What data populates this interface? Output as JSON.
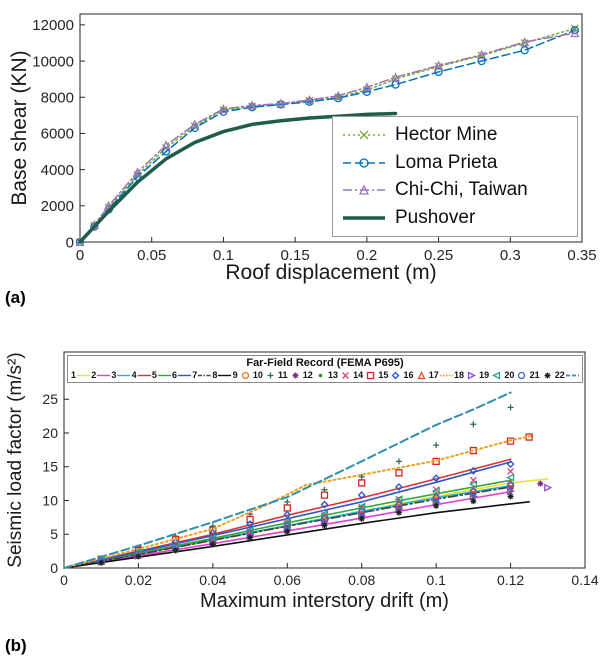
{
  "figure": {
    "panel_a_label": "(a)",
    "panel_b_label": "(b)"
  },
  "chart_data": [
    {
      "id": "a",
      "type": "line",
      "xlabel": "Roof displacement (m)",
      "ylabel": "Base shear (KN)",
      "xlim": [
        0,
        0.35
      ],
      "ylim": [
        0,
        12600
      ],
      "xticks": [
        0,
        0.05,
        0.1,
        0.15,
        0.2,
        0.25,
        0.3,
        0.35
      ],
      "xtick_labels": [
        "0",
        "0.05",
        "0.1",
        "0.15",
        "0.2",
        "0.25",
        "0.3",
        "0.35"
      ],
      "yticks": [
        0,
        2000,
        4000,
        6000,
        8000,
        10000,
        12000
      ],
      "ytick_labels": [
        "0",
        "2000",
        "4000",
        "6000",
        "8000",
        "10000",
        "12000"
      ],
      "grid": false,
      "legend_position": "right-middle",
      "series": [
        {
          "name": "Hector Mine",
          "color": "#77ac30",
          "line": "dot",
          "marker": "x",
          "width": 1.5,
          "x": [
            0,
            0.01,
            0.02,
            0.04,
            0.06,
            0.08,
            0.1,
            0.12,
            0.14,
            0.16,
            0.18,
            0.2,
            0.22,
            0.25,
            0.28,
            0.31,
            0.345
          ],
          "y": [
            0,
            900,
            1900,
            3700,
            5200,
            6400,
            7300,
            7500,
            7600,
            7800,
            8000,
            8400,
            9000,
            9700,
            10300,
            11000,
            11800
          ]
        },
        {
          "name": "Loma Prieta",
          "color": "#0072bd",
          "line": "dash",
          "marker": "o",
          "width": 1.5,
          "x": [
            0,
            0.01,
            0.02,
            0.04,
            0.06,
            0.08,
            0.1,
            0.12,
            0.14,
            0.16,
            0.18,
            0.2,
            0.22,
            0.25,
            0.28,
            0.31,
            0.345
          ],
          "y": [
            0,
            850,
            1800,
            3600,
            5000,
            6300,
            7200,
            7450,
            7600,
            7750,
            7950,
            8300,
            8700,
            9400,
            10000,
            10600,
            11700
          ]
        },
        {
          "name": "Chi-Chi, Taiwan",
          "color": "#9c73b8",
          "line": "dashdot",
          "marker": "^",
          "width": 1.5,
          "x": [
            0,
            0.01,
            0.02,
            0.04,
            0.06,
            0.08,
            0.1,
            0.12,
            0.14,
            0.16,
            0.18,
            0.2,
            0.22,
            0.25,
            0.28,
            0.31,
            0.345
          ],
          "y": [
            0,
            950,
            2000,
            3850,
            5350,
            6500,
            7350,
            7550,
            7650,
            7850,
            8080,
            8550,
            9100,
            9750,
            10350,
            11050,
            11550
          ]
        },
        {
          "name": "Pushover",
          "color": "#1f5c4a",
          "line": "solid",
          "marker": "none",
          "width": 3.5,
          "x": [
            0,
            0.02,
            0.04,
            0.06,
            0.08,
            0.1,
            0.12,
            0.14,
            0.16,
            0.18,
            0.2,
            0.22
          ],
          "y": [
            0,
            1700,
            3300,
            4600,
            5500,
            6100,
            6500,
            6700,
            6850,
            6950,
            7050,
            7100
          ]
        }
      ]
    },
    {
      "id": "b",
      "type": "line",
      "legend_title": "Far-Field Record (FEMA P695)",
      "xlabel": "Maximum interstory drift (m)",
      "ylabel": "Seismic load factor (m/s²)",
      "xlim": [
        0,
        0.14
      ],
      "ylim": [
        0,
        32
      ],
      "xticks": [
        0,
        0.02,
        0.04,
        0.06,
        0.08,
        0.1,
        0.12,
        0.14
      ],
      "xtick_labels": [
        "0",
        "0.02",
        "0.04",
        "0.06",
        "0.08",
        "0.1",
        "0.12",
        "0.14"
      ],
      "yticks": [
        0,
        5,
        10,
        15,
        20,
        25
      ],
      "ytick_labels": [
        "0",
        "5",
        "10",
        "15",
        "20",
        "25"
      ],
      "grid": false,
      "legend_position": "top-inside",
      "series": [
        {
          "name": "1",
          "color": "#f0e030",
          "line": "solid",
          "marker": "none",
          "x": [
            0,
            0.02,
            0.04,
            0.06,
            0.08,
            0.1,
            0.12,
            0.13
          ],
          "y": [
            0,
            2.0,
            4.1,
            6.2,
            8.4,
            10.6,
            12.6,
            13.2
          ]
        },
        {
          "name": "2",
          "color": "#e040d0",
          "line": "solid",
          "marker": "none",
          "x": [
            0,
            0.02,
            0.04,
            0.06,
            0.08,
            0.1,
            0.12
          ],
          "y": [
            0,
            1.8,
            3.6,
            5.5,
            7.4,
            9.4,
            11.3
          ]
        },
        {
          "name": "3",
          "color": "#20b8c8",
          "line": "solid",
          "marker": "none",
          "x": [
            0,
            0.02,
            0.04,
            0.06,
            0.08,
            0.1,
            0.12
          ],
          "y": [
            0,
            2.1,
            4.2,
            6.3,
            8.4,
            10.4,
            12.2
          ]
        },
        {
          "name": "4",
          "color": "#e03333",
          "line": "solid",
          "marker": "none",
          "x": [
            0,
            0.02,
            0.04,
            0.06,
            0.08,
            0.1,
            0.12
          ],
          "y": [
            0,
            2.5,
            5.0,
            7.8,
            10.4,
            13.2,
            16.1
          ]
        },
        {
          "name": "5",
          "color": "#37a837",
          "line": "solid",
          "marker": "none",
          "x": [
            0,
            0.02,
            0.04,
            0.06,
            0.08,
            0.1,
            0.12
          ],
          "y": [
            0,
            2.2,
            4.4,
            6.7,
            8.9,
            11.0,
            13.0
          ]
        },
        {
          "name": "6",
          "color": "#3355cc",
          "line": "solid",
          "marker": "none",
          "x": [
            0,
            0.02,
            0.04,
            0.06,
            0.08,
            0.1,
            0.12
          ],
          "y": [
            0,
            2.4,
            4.8,
            7.3,
            9.8,
            12.7,
            15.7
          ]
        },
        {
          "name": "7",
          "color": "#444444",
          "line": "dashdot",
          "marker": "none",
          "x": [
            0,
            0.02,
            0.04,
            0.06,
            0.08,
            0.1,
            0.12
          ],
          "y": [
            0,
            2.0,
            4.1,
            6.2,
            8.2,
            10.2,
            12.0
          ]
        },
        {
          "name": "8",
          "color": "#111111",
          "line": "solid",
          "marker": "none",
          "x": [
            0,
            0.02,
            0.04,
            0.06,
            0.08,
            0.1,
            0.12,
            0.125
          ],
          "y": [
            0,
            1.6,
            3.2,
            4.9,
            6.6,
            8.2,
            9.5,
            9.8
          ]
        },
        {
          "name": "9",
          "color": "#f07820",
          "line": "none",
          "marker": "o",
          "x": [
            0.01,
            0.02,
            0.03,
            0.04,
            0.05,
            0.06,
            0.07,
            0.08,
            0.09,
            0.1,
            0.11,
            0.12
          ],
          "y": [
            0.9,
            2.0,
            2.8,
            4.1,
            5.0,
            6.2,
            7.0,
            8.3,
            9.0,
            10.3,
            11.2,
            12.1
          ]
        },
        {
          "name": "10",
          "color": "#2e6b5e",
          "line": "none",
          "marker": "+",
          "x": [
            0.01,
            0.02,
            0.03,
            0.04,
            0.05,
            0.06,
            0.07,
            0.08,
            0.09,
            0.1,
            0.11,
            0.12
          ],
          "y": [
            1.4,
            3.0,
            4.7,
            6.2,
            8.0,
            9.8,
            11.6,
            13.5,
            15.8,
            18.2,
            21.3,
            23.8
          ]
        },
        {
          "name": "11",
          "color": "#7e2f8e",
          "line": "none",
          "marker": "*",
          "x": [
            0.01,
            0.02,
            0.03,
            0.04,
            0.05,
            0.06,
            0.07,
            0.08,
            0.09,
            0.1,
            0.11,
            0.12,
            0.128
          ],
          "y": [
            0.9,
            1.9,
            2.8,
            3.8,
            4.9,
            5.8,
            6.8,
            7.9,
            8.9,
            9.9,
            10.9,
            11.8,
            12.5
          ]
        },
        {
          "name": "12",
          "color": "#2e8b2e",
          "line": "none",
          "marker": ".",
          "x": [
            0.01,
            0.02,
            0.03,
            0.04,
            0.05,
            0.06,
            0.07,
            0.08,
            0.09,
            0.1,
            0.11,
            0.12
          ],
          "y": [
            0.9,
            1.8,
            2.9,
            3.7,
            4.6,
            5.7,
            6.6,
            7.5,
            8.6,
            9.6,
            10.4,
            11.2
          ]
        },
        {
          "name": "13",
          "color": "#d6457a",
          "line": "none",
          "marker": "x",
          "x": [
            0.01,
            0.02,
            0.03,
            0.04,
            0.05,
            0.06,
            0.07,
            0.08,
            0.09,
            0.1,
            0.11,
            0.12
          ],
          "y": [
            1.0,
            2.1,
            3.3,
            4.3,
            5.4,
            6.7,
            7.8,
            9.0,
            10.2,
            11.6,
            13.0,
            14.3
          ]
        },
        {
          "name": "14",
          "color": "#d62728",
          "line": "none",
          "marker": "s",
          "x": [
            0.01,
            0.02,
            0.03,
            0.04,
            0.05,
            0.06,
            0.07,
            0.08,
            0.09,
            0.1,
            0.11,
            0.12,
            0.125
          ],
          "y": [
            1.3,
            2.7,
            4.2,
            5.6,
            7.2,
            8.9,
            10.8,
            12.6,
            14.1,
            15.8,
            17.4,
            18.8,
            19.4
          ]
        },
        {
          "name": "15",
          "color": "#2255cc",
          "line": "none",
          "marker": "d",
          "x": [
            0.01,
            0.02,
            0.03,
            0.04,
            0.05,
            0.06,
            0.07,
            0.08,
            0.09,
            0.1,
            0.11,
            0.12
          ],
          "y": [
            1.2,
            2.5,
            3.8,
            5.2,
            6.5,
            7.9,
            9.4,
            10.8,
            12.0,
            13.3,
            14.4,
            15.4
          ]
        },
        {
          "name": "16",
          "color": "#e05020",
          "line": "none",
          "marker": "^",
          "x": [
            0.01,
            0.02,
            0.03,
            0.04,
            0.05,
            0.06,
            0.07,
            0.08,
            0.09,
            0.1,
            0.11,
            0.12
          ],
          "y": [
            1.0,
            2.0,
            3.1,
            4.2,
            5.4,
            6.4,
            7.5,
            8.7,
            9.7,
            10.7,
            11.7,
            12.6
          ]
        },
        {
          "name": "17",
          "color": "#eda120",
          "line": "dot",
          "marker": "none",
          "width": 2,
          "x": [
            0,
            0.02,
            0.04,
            0.055,
            0.065,
            0.08,
            0.1,
            0.12,
            0.126
          ],
          "y": [
            0,
            2.8,
            5.8,
            9.5,
            12.3,
            13.8,
            15.9,
            18.9,
            19.6
          ]
        },
        {
          "name": "18",
          "color": "#8a4fc8",
          "line": "none",
          "marker": ">",
          "x": [
            0.01,
            0.02,
            0.03,
            0.04,
            0.05,
            0.06,
            0.07,
            0.08,
            0.09,
            0.1,
            0.11,
            0.12,
            0.13
          ],
          "y": [
            0.9,
            1.8,
            2.8,
            3.7,
            4.7,
            5.7,
            6.8,
            7.7,
            8.7,
            9.7,
            10.6,
            11.4,
            11.9
          ]
        },
        {
          "name": "19",
          "color": "#2aa08a",
          "line": "none",
          "marker": "<",
          "x": [
            0.01,
            0.02,
            0.03,
            0.04,
            0.05,
            0.06,
            0.07,
            0.08,
            0.09,
            0.1,
            0.11,
            0.12
          ],
          "y": [
            1.1,
            2.2,
            3.4,
            4.5,
            5.6,
            6.8,
            8.0,
            9.1,
            10.2,
            11.4,
            12.4,
            13.4
          ]
        },
        {
          "name": "20",
          "color": "#4169cc",
          "line": "none",
          "marker": "o",
          "x": [
            0.01,
            0.02,
            0.03,
            0.04,
            0.05,
            0.06,
            0.07,
            0.08,
            0.09,
            0.1,
            0.11,
            0.12
          ],
          "y": [
            1.0,
            2.0,
            3.1,
            4.1,
            5.1,
            6.2,
            7.3,
            8.3,
            9.3,
            10.4,
            11.3,
            12.3
          ]
        },
        {
          "name": "21",
          "color": "#222222",
          "line": "none",
          "marker": "*",
          "x": [
            0.01,
            0.02,
            0.03,
            0.04,
            0.05,
            0.06,
            0.07,
            0.08,
            0.09,
            0.1,
            0.11,
            0.12
          ],
          "y": [
            0.8,
            1.7,
            2.6,
            3.5,
            4.5,
            5.4,
            6.3,
            7.3,
            8.2,
            9.2,
            9.9,
            10.6
          ]
        },
        {
          "name": "22",
          "color": "#2e8fb0",
          "line": "dash",
          "marker": "none",
          "width": 2,
          "x": [
            0,
            0.02,
            0.04,
            0.06,
            0.08,
            0.09,
            0.1,
            0.11,
            0.12
          ],
          "y": [
            0,
            3.3,
            6.8,
            10.5,
            15.8,
            18.5,
            21.2,
            23.5,
            26.0
          ]
        }
      ]
    }
  ]
}
